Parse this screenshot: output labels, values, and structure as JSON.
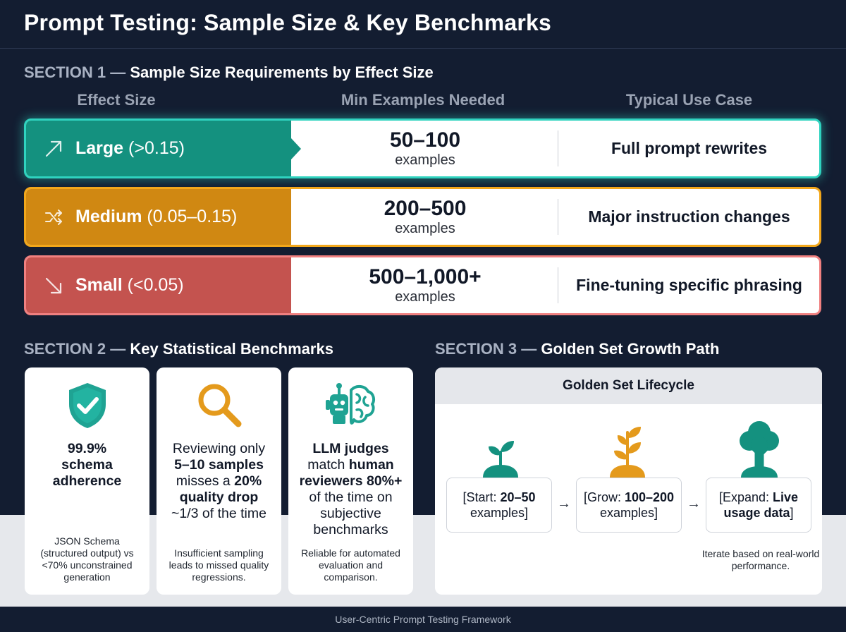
{
  "title": "Prompt Testing: Sample Size & Key Benchmarks",
  "section1": {
    "number": "SECTION 1 —",
    "heading": "Sample Size Requirements by Effect Size",
    "columns": [
      "Effect Size",
      "Min Examples Needed",
      "Typical Use Case"
    ],
    "rows": [
      {
        "name": "Large",
        "range": "(>0.15)",
        "min": "50–100",
        "unit": "examples",
        "use_case": "Full prompt rewrites",
        "color": "#14917f",
        "icon": "trend-up-icon"
      },
      {
        "name": "Medium",
        "range": "(0.05–0.15)",
        "min": "200–500",
        "unit": "examples",
        "use_case": "Major instruction changes",
        "color": "#d08812",
        "icon": "shuffle-icon"
      },
      {
        "name": "Small",
        "range": "(<0.05)",
        "min": "500–1,000+",
        "unit": "examples",
        "use_case": "Fine-tuning specific phrasing",
        "color": "#c4534f",
        "icon": "trend-down-icon"
      }
    ]
  },
  "section2": {
    "number": "SECTION 2 —",
    "heading": "Key Statistical Benchmarks",
    "cards": [
      {
        "icon": "shield-check-icon",
        "line1": "99.9%",
        "line2": "schema",
        "line3": "adherence",
        "note": "JSON Schema (structured output) vs <70% unconstrained generation"
      },
      {
        "icon": "magnifier-icon",
        "t1": "Reviewing only",
        "b1": "5–10 samples",
        "t2": "misses a",
        "b2": "20%",
        "b3": "quality drop",
        "t3": "~1/3 of the time",
        "note": "Insufficient sampling leads to missed quality regressions."
      },
      {
        "icon": "robot-brain-icon",
        "b1": "LLM judges",
        "t1": "match",
        "b2": "human",
        "b3": "reviewers 80%+",
        "t2": "of the time on subjective benchmarks",
        "note": "Reliable for automated evaluation and comparison."
      }
    ]
  },
  "section3": {
    "number": "SECTION 3 —",
    "heading": "Golden Set Growth Path",
    "panel_title": "Golden Set Lifecycle",
    "stages": [
      {
        "prefix": "[Start: ",
        "bold": "20–50",
        "suffix": " examples]",
        "icon": "sprout-icon"
      },
      {
        "prefix": "[Grow: ",
        "bold": "100–200",
        "suffix": " examples]",
        "icon": "plant-icon"
      },
      {
        "prefix": "[Expand: ",
        "bold": "Live usage data",
        "suffix": "]",
        "icon": "tree-icon"
      }
    ],
    "arrow": "→",
    "note": "Iterate based on real-world performance."
  },
  "footer": "User-Centric Prompt Testing Framework",
  "colors": {
    "teal": "#14917f",
    "orange": "#d08812",
    "red": "#c4534f",
    "navy": "#131d31"
  }
}
